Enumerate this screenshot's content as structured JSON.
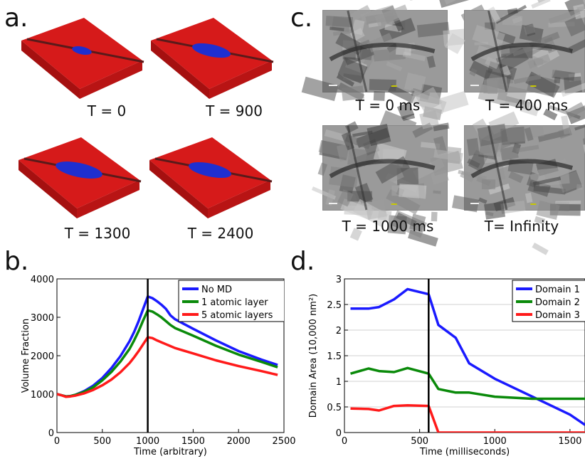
{
  "panels": {
    "a": {
      "letter": "a.",
      "captions": [
        "T = 0",
        "T = 900",
        "T = 1300",
        "T = 2400"
      ],
      "colors": {
        "slab": "#d61a1a",
        "slab_side": "#a51010",
        "domain": "#1f2fd0",
        "line": "#5a1a1a"
      },
      "domain_size": [
        0.2,
        0.65,
        0.85,
        0.75
      ]
    },
    "c": {
      "letter": "c.",
      "captions": [
        "T = 0 ms",
        "T = 400 ms",
        "T = 1000 ms",
        "T= Infinity"
      ]
    },
    "b": {
      "letter": "b."
    },
    "d": {
      "letter": "d."
    }
  },
  "chart_data": [
    {
      "type": "line",
      "xlabel": "Time (arbitrary)",
      "ylabel": "Volume Fraction",
      "xlim": [
        0,
        2500
      ],
      "ylim": [
        0,
        4000
      ],
      "xticks": [
        "0",
        "500",
        "1000",
        "1500",
        "2000",
        "2500"
      ],
      "yticks": [
        "0",
        "1000",
        "2000",
        "3000",
        "4000"
      ],
      "grid": false,
      "legend": "top-right",
      "vline": 1000,
      "series": [
        {
          "name": "No MD",
          "color": "#1a1aff",
          "x": [
            0,
            50,
            100,
            150,
            200,
            300,
            400,
            500,
            600,
            700,
            800,
            850,
            900,
            950,
            1000,
            1050,
            1100,
            1150,
            1200,
            1250,
            1300,
            1500,
            1750,
            2000,
            2250,
            2430
          ],
          "y": [
            1000,
            970,
            940,
            950,
            980,
            1080,
            1220,
            1420,
            1680,
            1990,
            2380,
            2620,
            2900,
            3220,
            3540,
            3500,
            3420,
            3330,
            3220,
            3050,
            2950,
            2700,
            2400,
            2120,
            1900,
            1760
          ]
        },
        {
          "name": "1 atomic layer",
          "color": "#0a8a0a",
          "x": [
            0,
            50,
            100,
            150,
            200,
            300,
            400,
            500,
            600,
            700,
            800,
            850,
            900,
            950,
            1000,
            1050,
            1100,
            1150,
            1200,
            1250,
            1300,
            1500,
            1750,
            2000,
            2250,
            2430
          ],
          "y": [
            1000,
            970,
            940,
            950,
            980,
            1060,
            1180,
            1360,
            1580,
            1850,
            2180,
            2400,
            2640,
            2920,
            3180,
            3150,
            3080,
            3000,
            2900,
            2800,
            2720,
            2520,
            2260,
            2030,
            1840,
            1700
          ]
        },
        {
          "name": "5 atomic layers",
          "color": "#ff1a1a",
          "x": [
            0,
            50,
            100,
            150,
            200,
            300,
            400,
            500,
            600,
            700,
            800,
            850,
            900,
            950,
            1000,
            1050,
            1100,
            1150,
            1200,
            1250,
            1300,
            1500,
            1750,
            2000,
            2250,
            2430
          ],
          "y": [
            1000,
            970,
            930,
            940,
            960,
            1020,
            1110,
            1230,
            1380,
            1570,
            1810,
            1960,
            2120,
            2300,
            2480,
            2460,
            2400,
            2350,
            2300,
            2250,
            2200,
            2060,
            1880,
            1730,
            1600,
            1500
          ]
        }
      ]
    },
    {
      "type": "line",
      "xlabel": "Time (milliseconds)",
      "ylabel": "Domain Area (10,000 nm²)",
      "xlim": [
        0,
        1600
      ],
      "ylim": [
        0,
        3
      ],
      "xticks": [
        "0",
        "500",
        "1000",
        "1500"
      ],
      "yticks": [
        "0",
        "0.5",
        "1",
        "1.5",
        "2",
        "2.5",
        "3"
      ],
      "grid": true,
      "legend": "top-right",
      "vline": 560,
      "series": [
        {
          "name": "Domain 1",
          "color": "#1a1aff",
          "x": [
            40,
            160,
            230,
            330,
            420,
            560,
            625,
            740,
            830,
            1000,
            1250,
            1500,
            1600
          ],
          "y": [
            2.42,
            2.42,
            2.45,
            2.6,
            2.8,
            2.7,
            2.1,
            1.85,
            1.35,
            1.05,
            0.7,
            0.35,
            0.15
          ]
        },
        {
          "name": "Domain 2",
          "color": "#0a8a0a",
          "x": [
            40,
            160,
            230,
            330,
            420,
            560,
            625,
            740,
            830,
            1000,
            1250,
            1500,
            1600
          ],
          "y": [
            1.15,
            1.25,
            1.2,
            1.18,
            1.26,
            1.15,
            0.85,
            0.78,
            0.78,
            0.7,
            0.66,
            0.66,
            0.66
          ]
        },
        {
          "name": "Domain 3",
          "color": "#ff1a1a",
          "x": [
            40,
            160,
            230,
            330,
            420,
            560,
            625,
            740,
            830,
            1000,
            1250,
            1500,
            1600
          ],
          "y": [
            0.47,
            0.46,
            0.43,
            0.52,
            0.53,
            0.52,
            0,
            0,
            0,
            0,
            0,
            0,
            0
          ]
        }
      ]
    }
  ]
}
